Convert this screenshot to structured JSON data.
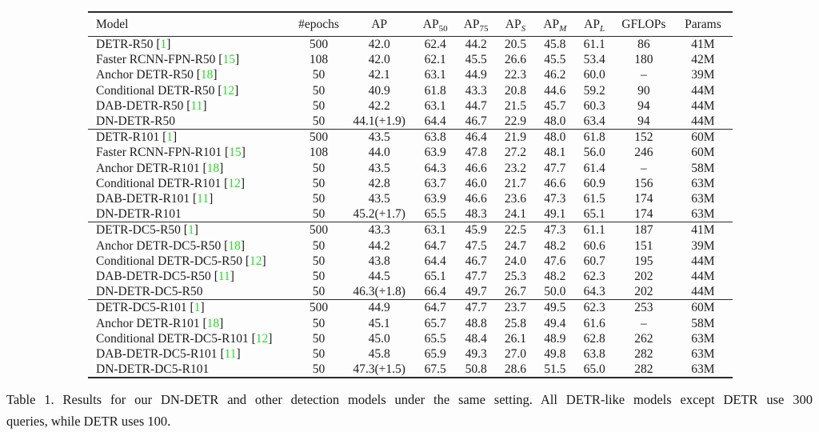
{
  "colors": {
    "background": "#fdfdfd",
    "text": "#1c1c1c",
    "rule": "#2b2b2b",
    "citation_green": "#27dd27"
  },
  "table": {
    "columns": [
      {
        "key": "model",
        "label": "Model",
        "sub": ""
      },
      {
        "key": "epochs",
        "label": "#epochs",
        "sub": ""
      },
      {
        "key": "ap",
        "label": "AP",
        "sub": ""
      },
      {
        "key": "ap50",
        "label": "AP",
        "sub": "50"
      },
      {
        "key": "ap75",
        "label": "AP",
        "sub": "75"
      },
      {
        "key": "aps",
        "label": "AP",
        "sub": "S",
        "sub_italic": true
      },
      {
        "key": "apm",
        "label": "AP",
        "sub": "M",
        "sub_italic": true
      },
      {
        "key": "apl",
        "label": "AP",
        "sub": "L",
        "sub_italic": true
      },
      {
        "key": "gflops",
        "label": "GFLOPs",
        "sub": ""
      },
      {
        "key": "params",
        "label": "Params",
        "sub": ""
      }
    ],
    "groups": [
      {
        "rows": [
          {
            "model": "DETR-R50",
            "cite": "1",
            "ap_bold": false,
            "values": [
              "500",
              "42.0",
              "62.4",
              "44.2",
              "20.5",
              "45.8",
              "61.1",
              "86",
              "41M"
            ]
          },
          {
            "model": "Faster RCNN-FPN-R50",
            "cite": "15",
            "ap_bold": false,
            "values": [
              "108",
              "42.0",
              "62.1",
              "45.5",
              "26.6",
              "45.5",
              "53.4",
              "180",
              "42M"
            ]
          },
          {
            "model": "Anchor DETR-R50",
            "cite": "18",
            "ap_bold": false,
            "values": [
              "50",
              "42.1",
              "63.1",
              "44.9",
              "22.3",
              "46.2",
              "60.0",
              "–",
              "39M"
            ]
          },
          {
            "model": "Conditional DETR-R50",
            "cite": "12",
            "ap_bold": false,
            "values": [
              "50",
              "40.9",
              "61.8",
              "43.3",
              "20.8",
              "44.6",
              "59.2",
              "90",
              "44M"
            ]
          },
          {
            "model": "DAB-DETR-R50",
            "cite": "11",
            "ap_bold": false,
            "values": [
              "50",
              "42.2",
              "63.1",
              "44.7",
              "21.5",
              "45.7",
              "60.3",
              "94",
              "44M"
            ]
          },
          {
            "model": "DN-DETR-R50",
            "cite": "",
            "ap_bold": true,
            "values": [
              "50",
              "44.1(+1.9)",
              "64.4",
              "46.7",
              "22.9",
              "48.0",
              "63.4",
              "94",
              "44M"
            ]
          }
        ]
      },
      {
        "rows": [
          {
            "model": "DETR-R101",
            "cite": "1",
            "ap_bold": false,
            "values": [
              "500",
              "43.5",
              "63.8",
              "46.4",
              "21.9",
              "48.0",
              "61.8",
              "152",
              "60M"
            ]
          },
          {
            "model": "Faster RCNN-FPN-R101",
            "cite": "15",
            "ap_bold": false,
            "values": [
              "108",
              "44.0",
              "63.9",
              "47.8",
              "27.2",
              "48.1",
              "56.0",
              "246",
              "60M"
            ]
          },
          {
            "model": "Anchor DETR-R101",
            "cite": "18",
            "ap_bold": false,
            "values": [
              "50",
              "43.5",
              "64.3",
              "46.6",
              "23.2",
              "47.7",
              "61.4",
              "–",
              "58M"
            ]
          },
          {
            "model": "Conditional DETR-R101",
            "cite": "12",
            "ap_bold": false,
            "values": [
              "50",
              "42.8",
              "63.7",
              "46.0",
              "21.7",
              "46.6",
              "60.9",
              "156",
              "63M"
            ]
          },
          {
            "model": "DAB-DETR-R101",
            "cite": "11",
            "ap_bold": false,
            "values": [
              "50",
              "43.5",
              "63.9",
              "46.6",
              "23.6",
              "47.3",
              "61.5",
              "174",
              "63M"
            ]
          },
          {
            "model": "DN-DETR-R101",
            "cite": "",
            "ap_bold": true,
            "values": [
              "50",
              "45.2(+1.7)",
              "65.5",
              "48.3",
              "24.1",
              "49.1",
              "65.1",
              "174",
              "63M"
            ]
          }
        ]
      },
      {
        "rows": [
          {
            "model": "DETR-DC5-R50",
            "cite": "1",
            "ap_bold": false,
            "values": [
              "500",
              "43.3",
              "63.1",
              "45.9",
              "22.5",
              "47.3",
              "61.1",
              "187",
              "41M"
            ]
          },
          {
            "model": "Anchor DETR-DC5-R50",
            "cite": "18",
            "ap_bold": false,
            "values": [
              "50",
              "44.2",
              "64.7",
              "47.5",
              "24.7",
              "48.2",
              "60.6",
              "151",
              "39M"
            ]
          },
          {
            "model": "Conditional DETR-DC5-R50",
            "cite": "12",
            "ap_bold": false,
            "values": [
              "50",
              "43.8",
              "64.4",
              "46.7",
              "24.0",
              "47.6",
              "60.7",
              "195",
              "44M"
            ]
          },
          {
            "model": "DAB-DETR-DC5-R50",
            "cite": "11",
            "ap_bold": false,
            "values": [
              "50",
              "44.5",
              "65.1",
              "47.7",
              "25.3",
              "48.2",
              "62.3",
              "202",
              "44M"
            ]
          },
          {
            "model": "DN-DETR-DC5-R50",
            "cite": "",
            "ap_bold": true,
            "values": [
              "50",
              "46.3(+1.8)",
              "66.4",
              "49.7",
              "26.7",
              "50.0",
              "64.3",
              "202",
              "44M"
            ]
          }
        ]
      },
      {
        "rows": [
          {
            "model": "DETR-DC5-R101",
            "cite": "1",
            "ap_bold": false,
            "values": [
              "500",
              "44.9",
              "64.7",
              "47.7",
              "23.7",
              "49.5",
              "62.3",
              "253",
              "60M"
            ]
          },
          {
            "model": "Anchor DETR-R101",
            "cite": "18",
            "ap_bold": false,
            "values": [
              "50",
              "45.1",
              "65.7",
              "48.8",
              "25.8",
              "49.4",
              "61.6",
              "–",
              "58M"
            ]
          },
          {
            "model": "Conditional DETR-DC5-R101",
            "cite": "12",
            "ap_bold": false,
            "values": [
              "50",
              "45.0",
              "65.5",
              "48.4",
              "26.1",
              "48.9",
              "62.8",
              "262",
              "63M"
            ]
          },
          {
            "model": "DAB-DETR-DC5-R101",
            "cite": "11",
            "ap_bold": false,
            "values": [
              "50",
              "45.8",
              "65.9",
              "49.3",
              "27.0",
              "49.8",
              "63.8",
              "282",
              "63M"
            ]
          },
          {
            "model": "DN-DETR-DC5-R101",
            "cite": "",
            "ap_bold": true,
            "values": [
              "50",
              "47.3(+1.5)",
              "67.5",
              "50.8",
              "28.6",
              "51.5",
              "65.0",
              "282",
              "63M"
            ]
          }
        ]
      }
    ]
  },
  "caption": {
    "lines": [
      "Table 1.  Results for our DN-DETR and other detection models under the same setting.  All DETR-like models except DETR use 300",
      "queries, while DETR uses 100."
    ]
  }
}
